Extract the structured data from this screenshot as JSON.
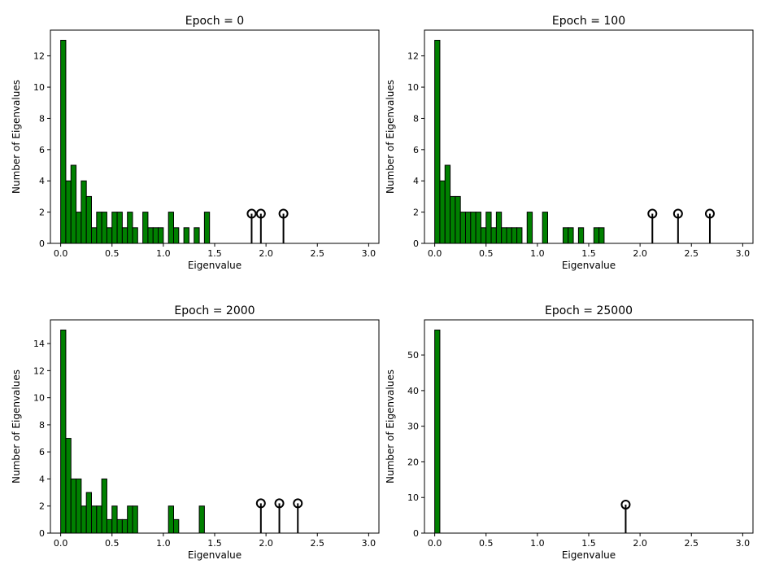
{
  "chart_data": [
    {
      "type": "bar",
      "title": "Epoch = 0",
      "xlabel": "Eigenvalue",
      "ylabel": "Number of Eigenvalues",
      "xlim": [
        -0.1,
        3.1
      ],
      "ylim": [
        0,
        13.65
      ],
      "xticks": [
        "0.0",
        "0.5",
        "1.0",
        "1.5",
        "2.0",
        "2.5",
        "3.0"
      ],
      "yticks": [
        "0",
        "2",
        "4",
        "6",
        "8",
        "10",
        "12"
      ],
      "bin_width": 0.05,
      "values": [
        13,
        4,
        5,
        2,
        4,
        3,
        1,
        2,
        2,
        1,
        2,
        2,
        1,
        2,
        1,
        0,
        2,
        1,
        1,
        1,
        0,
        2,
        1,
        0,
        1,
        0,
        1,
        0,
        2
      ],
      "outlier_markers": [
        1.86,
        1.95,
        2.17
      ],
      "outlier_height": 1.9,
      "bar_color": "#008000"
    },
    {
      "type": "bar",
      "title": "Epoch = 100",
      "xlabel": "Eigenvalue",
      "ylabel": "Number of Eigenvalues",
      "xlim": [
        -0.1,
        3.1
      ],
      "ylim": [
        0,
        13.65
      ],
      "xticks": [
        "0.0",
        "0.5",
        "1.0",
        "1.5",
        "2.0",
        "2.5",
        "3.0"
      ],
      "yticks": [
        "0",
        "2",
        "4",
        "6",
        "8",
        "10",
        "12"
      ],
      "bin_width": 0.05,
      "values": [
        13,
        4,
        5,
        3,
        3,
        2,
        2,
        2,
        2,
        1,
        2,
        1,
        2,
        1,
        1,
        1,
        1,
        0,
        2,
        0,
        0,
        2,
        0,
        0,
        0,
        1,
        1,
        0,
        1,
        0,
        0,
        1,
        1
      ],
      "outlier_markers": [
        2.12,
        2.37,
        2.68
      ],
      "outlier_height": 1.9,
      "bar_color": "#008000"
    },
    {
      "type": "bar",
      "title": "Epoch = 2000",
      "xlabel": "Eigenvalue",
      "ylabel": "Number of Eigenvalues",
      "xlim": [
        -0.1,
        3.1
      ],
      "ylim": [
        0,
        15.75
      ],
      "xticks": [
        "0.0",
        "0.5",
        "1.0",
        "1.5",
        "2.0",
        "2.5",
        "3.0"
      ],
      "yticks": [
        "0",
        "2",
        "4",
        "6",
        "8",
        "10",
        "12",
        "14"
      ],
      "bin_width": 0.05,
      "values": [
        15,
        7,
        4,
        4,
        2,
        3,
        2,
        2,
        4,
        1,
        2,
        1,
        1,
        2,
        2,
        0,
        0,
        0,
        0,
        0,
        0,
        2,
        1,
        0,
        0,
        0,
        0,
        2
      ],
      "outlier_markers": [
        1.95,
        2.13,
        2.31
      ],
      "outlier_height": 2.2,
      "bar_color": "#008000"
    },
    {
      "type": "bar",
      "title": "Epoch = 25000",
      "xlabel": "Eigenvalue",
      "ylabel": "Number of Eigenvalues",
      "xlim": [
        -0.1,
        3.1
      ],
      "ylim": [
        0,
        59.85
      ],
      "xticks": [
        "0.0",
        "0.5",
        "1.0",
        "1.5",
        "2.0",
        "2.5",
        "3.0"
      ],
      "yticks": [
        "0",
        "10",
        "20",
        "30",
        "40",
        "50"
      ],
      "bin_width": 0.05,
      "values": [
        57
      ],
      "outlier_markers": [
        1.86
      ],
      "outlier_height": 8,
      "bar_color": "#008000"
    }
  ]
}
